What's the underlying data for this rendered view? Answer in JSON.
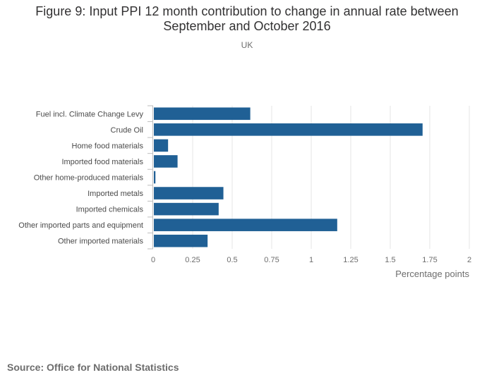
{
  "chart_data": {
    "type": "bar",
    "orientation": "horizontal",
    "title_line1": "Figure 9: Input PPI 12 month contribution to change in annual rate between",
    "title_line2": "September and October 2016",
    "subtitle": "UK",
    "categories": [
      "Fuel incl. Climate Change Levy",
      "Crude Oil",
      "Home food materials",
      "Imported food materials",
      "Other home-produced materials",
      "Imported metals",
      "Imported chemicals",
      "Other imported parts and equipment",
      "Other imported materials"
    ],
    "values": [
      0.61,
      1.7,
      0.09,
      0.15,
      0.01,
      0.44,
      0.41,
      1.16,
      0.34
    ],
    "xlim": [
      0,
      2
    ],
    "xticks": [
      0,
      0.25,
      0.5,
      0.75,
      1,
      1.25,
      1.5,
      1.75,
      2
    ],
    "xtick_labels": [
      "0",
      "0.25",
      "0.5",
      "0.75",
      "1",
      "1.25",
      "1.5",
      "1.75",
      "2"
    ],
    "xlabel": "Percentage points",
    "ylabel": "",
    "grid": true,
    "legend": "none",
    "bar_color": "#206095"
  },
  "source": "Source: Office for National Statistics"
}
